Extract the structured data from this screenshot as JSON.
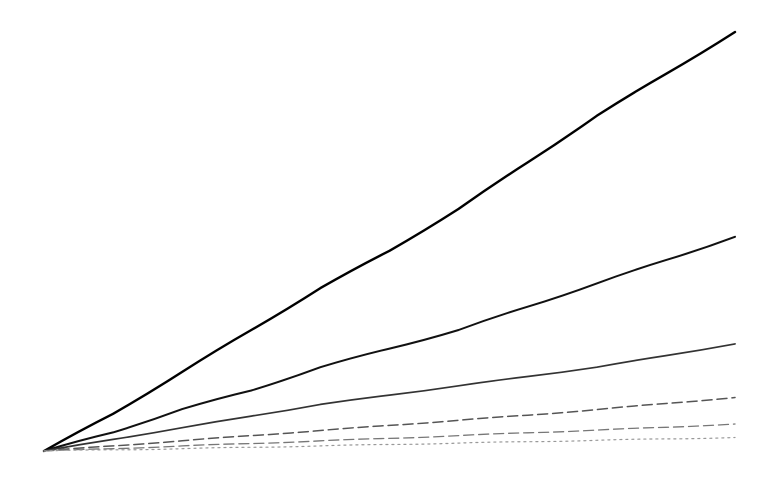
{
  "chart_data": {
    "type": "line",
    "title": "",
    "xlabel": "",
    "ylabel": "",
    "x": [
      0,
      1,
      2,
      3,
      4,
      5,
      6,
      7,
      8,
      9,
      10
    ],
    "xlim": [
      0,
      10
    ],
    "ylim": [
      0,
      100
    ],
    "grid": false,
    "axes_visible": false,
    "legend": "none",
    "series": [
      {
        "values": [
          0,
          8,
          17,
          26,
          35,
          43,
          52,
          62,
          72,
          81,
          90
        ],
        "line_color": "#000000",
        "style": "solid"
      },
      {
        "values": [
          0,
          4,
          9,
          13,
          18,
          22,
          26,
          31,
          36,
          41,
          46
        ],
        "line_color": "#111111",
        "style": "solid"
      },
      {
        "values": [
          0,
          2.5,
          5,
          7.5,
          10,
          12,
          14,
          16,
          18,
          20.5,
          23
        ],
        "line_color": "#333333",
        "style": "solid"
      },
      {
        "values": [
          0,
          1.1,
          2.2,
          3.3,
          4.4,
          5.5,
          6.6,
          7.7,
          8.9,
          10.2,
          11.5
        ],
        "line_color": "#555555",
        "style": "dashed"
      },
      {
        "values": [
          0,
          0.5,
          1.1,
          1.6,
          2.2,
          2.7,
          3.3,
          3.9,
          4.5,
          5.1,
          5.8
        ],
        "line_color": "#777777",
        "style": "dashed"
      },
      {
        "values": [
          0,
          0.25,
          0.5,
          0.8,
          1.1,
          1.4,
          1.7,
          2.0,
          2.3,
          2.6,
          2.9
        ],
        "line_color": "#999999",
        "style": "dotted"
      }
    ]
  }
}
